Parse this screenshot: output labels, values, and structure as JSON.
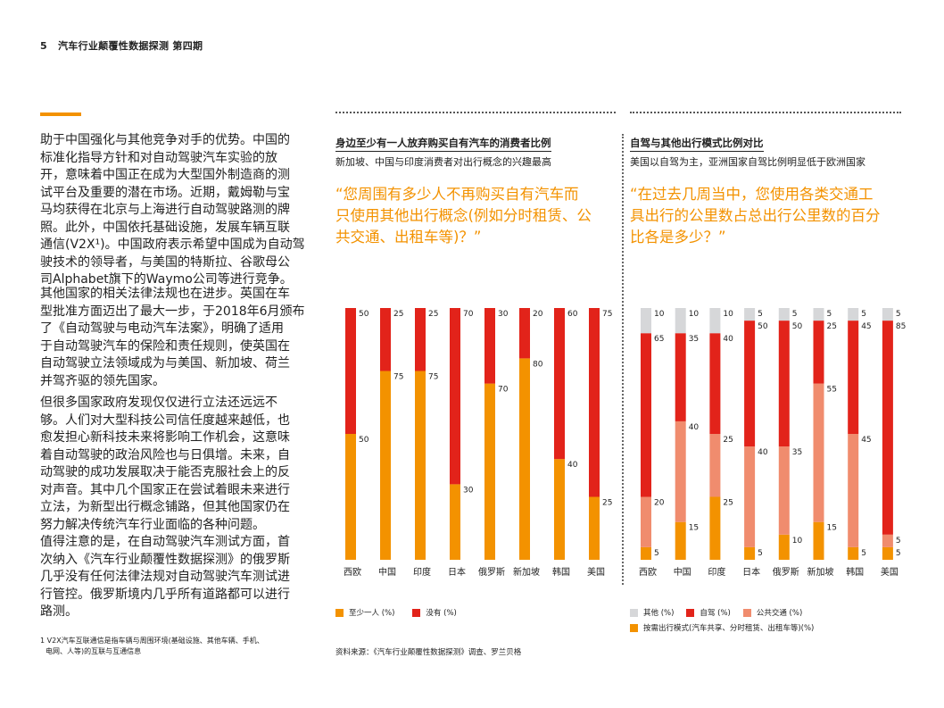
{
  "header": {
    "page_number": "5",
    "title": "汽车行业颠覆性数据探测 第四期"
  },
  "body": {
    "p1": [
      "助于中国强化与其他竞争对手的优势。中国的",
      "标准化指导方针和对自动驾驶汽车实验的放",
      "开，意味着中国正在成为大型国外制造商的测",
      "试平台及重要的潜在市场。近期，戴姆勒与宝",
      "马均获得在北京与上海进行自动驾驶路测的牌",
      "照。此外，中国依托基础设施，发展车辆互联",
      "通信(V2X¹)。中国政府表示希望中国成为自动驾",
      "驶技术的领导者，与美国的特斯拉、谷歌母公",
      "司Alphabet旗下的Waymo公司等进行竞争。"
    ],
    "p2": [
      "其他国家的相关法律法规也在进步。英国在车",
      "型批准方面迈出了最大一步，于2018年6月颁布",
      "了《自动驾驶与电动汽车法案》，明确了适用",
      "于自动驾驶汽车的保险和责任规则，使英国在",
      "自动驾驶立法领域成为与美国、新加坡、荷兰",
      "并驾齐驱的领先国家。"
    ],
    "p3": [
      "但很多国家政府发现仅仅进行立法还远远不",
      "够。人们对大型科技公司信任度越来越低，也",
      "愈发担心新科技未来将影响工作机会，这意味",
      "着自动驾驶的政治风险也与日俱增。未来，自",
      "动驾驶的成功发展取决于能否克服社会上的反",
      "对声音。其中几个国家正在尝试着眼未来进行",
      "立法，为新型出行概念铺路，但其他国家仍在",
      "努力解决传统汽车行业面临的各种问题。"
    ],
    "p4": [
      "值得注意的是，在自动驾驶汽车测试方面，首",
      "次纳入《汽车行业颠覆性数据探测》的俄罗斯",
      "几乎没有任何法律法规对自动驾驶汽车测试进",
      "行管控。俄罗斯境内几乎所有道路都可以进行",
      "路测。"
    ],
    "footnote": [
      "1 V2X汽车互联通信是指车辆与周围环境(基础设施、其他车辆、手机、",
      "电网、人等)的互联与互通信息"
    ]
  },
  "source": "资料来源：《汽车行业颠覆性数据探测》调查、罗兰贝格",
  "colors": {
    "orange": "#f39200",
    "red": "#e2231a",
    "salmon": "#f08c6e",
    "gray": "#d6d7d9"
  },
  "chart_data": [
    {
      "type": "bar",
      "stacked": true,
      "title": "身边至少有一人放弃购买自有汽车的消费者比例",
      "subtitle": "新加坡、中国与印度消费者对出行概念的兴趣最高",
      "question": [
        "“您周围有多少人不再购买自有汽车而",
        "只使用其他出行概念(例如分时租赁、公",
        "共交通、出租车等)？”"
      ],
      "categories": [
        "西欧",
        "中国",
        "印度",
        "日本",
        "俄罗斯",
        "新加坡",
        "韩国",
        "美国"
      ],
      "ylim": [
        0,
        100
      ],
      "legend": "bottom",
      "series": [
        {
          "name": "至少一人 (%)",
          "color": "#f39200",
          "values": [
            50,
            75,
            75,
            30,
            70,
            80,
            40,
            25
          ]
        },
        {
          "name": "没有 (%)",
          "color": "#e2231a",
          "values": [
            50,
            25,
            25,
            70,
            30,
            20,
            60,
            75
          ]
        }
      ]
    },
    {
      "type": "bar",
      "stacked": true,
      "title": "自驾与其他出行模式比例对比",
      "subtitle": "美国以自驾为主，亚洲国家自驾比例明显低于欧洲国家",
      "question": [
        "“在过去几周当中，您使用各类交通工",
        "具出行的公里数占总出行公里数的百分",
        "比各是多少？”"
      ],
      "categories": [
        "西欧",
        "中国",
        "印度",
        "日本",
        "俄罗斯",
        "新加坡",
        "韩国",
        "美国"
      ],
      "ylim": [
        0,
        100
      ],
      "legend": "bottom",
      "series": [
        {
          "name": "按需出行模式(汽车共享、分时租赁、出租车等)(%)",
          "color": "#f39200",
          "values": [
            5,
            15,
            25,
            5,
            10,
            15,
            5,
            5
          ]
        },
        {
          "name": "公共交通 (%)",
          "color": "#f08c6e",
          "values": [
            20,
            40,
            25,
            40,
            35,
            55,
            45,
            5
          ]
        },
        {
          "name": "自驾 (%)",
          "color": "#e2231a",
          "values": [
            65,
            35,
            40,
            50,
            50,
            25,
            45,
            85
          ]
        },
        {
          "name": "其他 (%)",
          "color": "#d6d7d9",
          "values": [
            10,
            10,
            10,
            5,
            5,
            5,
            5,
            5
          ]
        }
      ]
    }
  ]
}
